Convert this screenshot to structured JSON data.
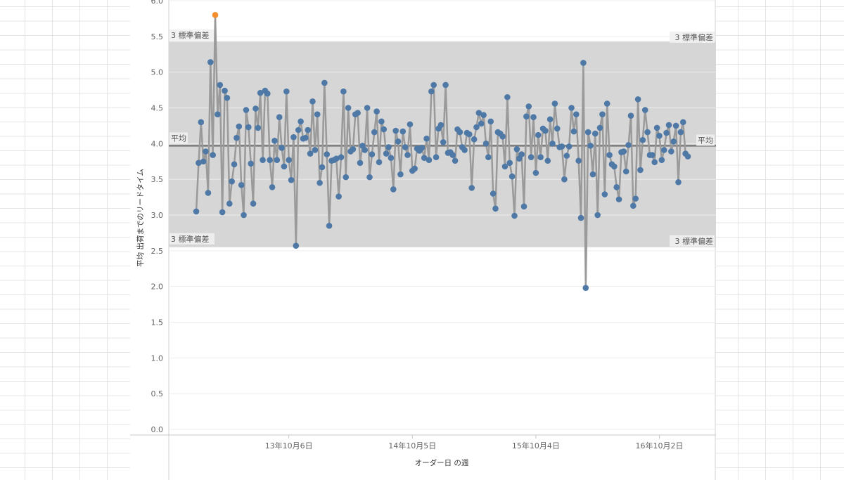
{
  "chart_data": {
    "type": "line",
    "xlabel": "オーダー日 の週",
    "ylabel": "平均 出荷までのリードタイム",
    "ylim": [
      0,
      6.0
    ],
    "yticks": [
      "0.0",
      "0.5",
      "1.0",
      "1.5",
      "2.0",
      "2.5",
      "3.0",
      "3.5",
      "4.0",
      "4.5",
      "5.0",
      "5.5",
      "6.0"
    ],
    "xticks": [
      {
        "label": "13年10月6日",
        "date": "2013-10-06"
      },
      {
        "label": "14年10月5日",
        "date": "2014-10-05"
      },
      {
        "label": "15年10月4日",
        "date": "2015-10-04"
      },
      {
        "label": "16年10月2日",
        "date": "2016-10-02"
      }
    ],
    "grid": true,
    "reference_lines": {
      "mean": {
        "label": "平均",
        "value": 3.97
      },
      "upper": {
        "label": "3 標準偏差",
        "value": 5.43
      },
      "lower": {
        "label": "3 標準偏差",
        "value": 2.55
      }
    },
    "colors": {
      "point": "#4e79a7",
      "outlier": "#f28e2b",
      "line": "#9a9a9a",
      "band": "#d6d6d6",
      "mean": "#7a7a7a"
    },
    "outlier_value": 5.8,
    "values": [
      3.05,
      3.73,
      4.3,
      3.75,
      3.89,
      3.31,
      5.14,
      3.84,
      5.8,
      4.41,
      4.82,
      3.04,
      4.74,
      4.64,
      3.16,
      3.47,
      3.71,
      4.08,
      4.24,
      3.42,
      3.0,
      4.47,
      4.23,
      3.72,
      3.16,
      4.49,
      4.22,
      4.71,
      3.77,
      4.74,
      4.7,
      3.77,
      3.39,
      4.04,
      3.77,
      4.37,
      3.94,
      3.68,
      4.73,
      3.77,
      3.49,
      4.09,
      2.57,
      4.19,
      4.31,
      4.07,
      4.08,
      4.19,
      3.86,
      4.59,
      3.91,
      4.41,
      3.45,
      3.67,
      4.85,
      3.85,
      2.85,
      3.76,
      3.77,
      3.79,
      3.26,
      3.81,
      4.73,
      3.53,
      4.5,
      3.89,
      3.92,
      4.41,
      4.43,
      3.73,
      3.97,
      3.91,
      4.5,
      3.53,
      3.85,
      4.16,
      4.45,
      3.74,
      4.31,
      4.2,
      3.86,
      3.95,
      3.8,
      3.36,
      4.18,
      4.03,
      3.57,
      4.17,
      3.95,
      3.84,
      4.27,
      3.62,
      3.65,
      3.93,
      3.9,
      3.94,
      3.8,
      4.07,
      3.77,
      4.73,
      4.82,
      3.81,
      4.21,
      4.26,
      4.02,
      4.82,
      3.87,
      3.88,
      3.84,
      3.76,
      4.2,
      4.16,
      3.95,
      3.91,
      4.15,
      4.13,
      3.38,
      4.06,
      4.23,
      4.43,
      4.28,
      4.4,
      4.0,
      3.81,
      4.31,
      3.3,
      3.09,
      4.16,
      4.14,
      4.1,
      3.68,
      4.65,
      3.73,
      3.54,
      2.99,
      3.92,
      3.79,
      3.85,
      3.12,
      4.38,
      4.52,
      3.81,
      4.37,
      3.59,
      4.12,
      3.81,
      4.21,
      4.18,
      3.76,
      4.34,
      4.0,
      4.56,
      4.21,
      3.95,
      3.96,
      3.5,
      3.83,
      3.96,
      4.5,
      4.17,
      4.41,
      3.76,
      2.96,
      5.13,
      1.98,
      4.16,
      3.97,
      3.57,
      4.14,
      3.0,
      4.22,
      4.41,
      3.29,
      4.56,
      3.84,
      3.71,
      3.68,
      3.39,
      3.22,
      3.88,
      3.89,
      3.61,
      3.98,
      4.39,
      3.13,
      3.23,
      4.62,
      3.63,
      4.05,
      4.47,
      4.16,
      3.84,
      3.84,
      3.74,
      4.22,
      4.11,
      3.77,
      3.91,
      4.15,
      4.26,
      3.89,
      4.03,
      4.25,
      3.46,
      4.16,
      4.3,
      3.86,
      3.82
    ]
  }
}
